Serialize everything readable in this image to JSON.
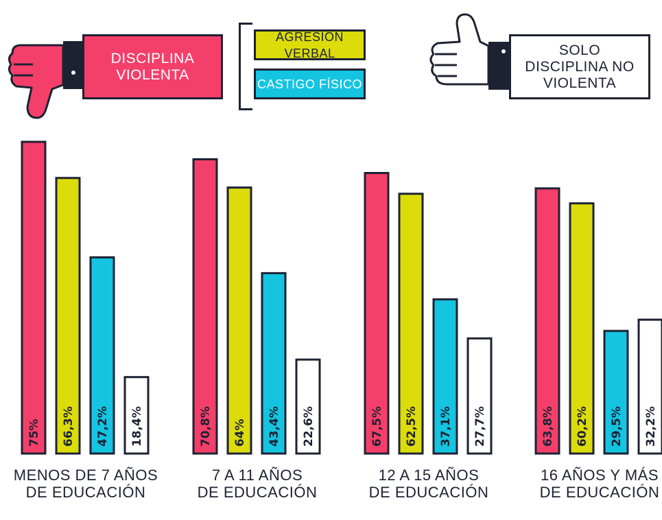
{
  "legend": {
    "violent": "DISCIPLINA VIOLENTA",
    "verbal": "AGRESIÓN VERBAL",
    "physical": "CASTIGO FÍSICO",
    "nonviolent": "SOLO DISCIPLINA NO VIOLENTA"
  },
  "colors": {
    "violent": "#f43f6b",
    "verbal": "#dcdc0b",
    "physical": "#14c4e0",
    "nonviolent": "#ffffff",
    "outline": "#1d2233"
  },
  "icons": [
    "thumbs-down-icon",
    "thumbs-up-icon"
  ],
  "chart_data": {
    "type": "bar",
    "categories": [
      "MENOS DE 7 AÑOS DE EDUCACIÓN",
      "7 A 11 AÑOS DE EDUCACIÓN",
      "12 A 15 AÑOS DE EDUCACIÓN",
      "16 AÑOS Y MÁS DE EDUCACIÓN"
    ],
    "category_lines": [
      [
        "MENOS DE 7 AÑOS",
        "DE EDUCACIÓN"
      ],
      [
        "7 A 11 AÑOS",
        "DE EDUCACIÓN"
      ],
      [
        "12 A 15 AÑOS",
        "DE EDUCACIÓN"
      ],
      [
        "16 AÑOS Y MÁS",
        "DE EDUCACIÓN"
      ]
    ],
    "series": [
      {
        "name": "DISCIPLINA VIOLENTA",
        "values": [
          75,
          70.8,
          67.5,
          63.8
        ],
        "labels": [
          "75%",
          "70,8%",
          "67,5%",
          "63,8%"
        ],
        "color": "#f43f6b"
      },
      {
        "name": "AGRESIÓN VERBAL",
        "values": [
          66.3,
          64,
          62.5,
          60.2
        ],
        "labels": [
          "66,3%",
          "64%",
          "62,5%",
          "60,2%"
        ],
        "color": "#dcdc0b"
      },
      {
        "name": "CASTIGO FÍSICO",
        "values": [
          47.2,
          43.4,
          37.1,
          29.5
        ],
        "labels": [
          "47,2%",
          "43,4%",
          "37,1%",
          "29,5%"
        ],
        "color": "#14c4e0"
      },
      {
        "name": "SOLO DISCIPLINA NO VIOLENTA",
        "values": [
          18.4,
          22.6,
          27.7,
          32.2
        ],
        "labels": [
          "18,4%",
          "22,6%",
          "27,7%",
          "32,2%"
        ],
        "color": "#ffffff"
      }
    ],
    "ylim": [
      0,
      75
    ],
    "grid": false,
    "legend_position": "top"
  }
}
